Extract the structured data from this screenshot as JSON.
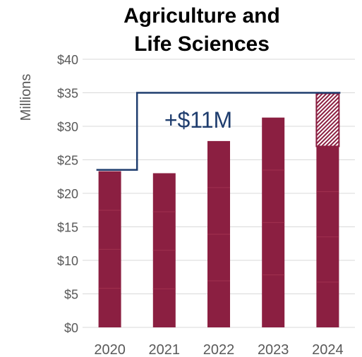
{
  "chart_data": {
    "type": "bar",
    "title_lines": [
      "Agriculture and",
      "Life Sciences"
    ],
    "ylabel": "Millions",
    "categories": [
      "2020",
      "2021",
      "2022",
      "2023",
      "2024"
    ],
    "values": [
      23.3,
      23.0,
      27.8,
      31.3,
      27.0
    ],
    "projected_increment": {
      "category": "2024",
      "from": 27.0,
      "to": 34.9
    },
    "goal_line": {
      "start": 23.5,
      "end": 35.0,
      "step_after": "2020"
    },
    "annotation": "+$11M",
    "ylim": [
      0,
      40
    ],
    "yticks": [
      0,
      5,
      10,
      15,
      20,
      25,
      30,
      35,
      40
    ],
    "ytick_labels": [
      "$0",
      "$5",
      "$10",
      "$15",
      "$20",
      "$25",
      "$30",
      "$35",
      "$40"
    ],
    "grid": true,
    "colors": {
      "bar": "#8b1f41",
      "bar_segment_line": "#a0304f",
      "goal_line": "#1f3d6e",
      "annotation": "#1f3d6e",
      "grid": "#d9d9d9",
      "tick_label": "#595959"
    }
  }
}
